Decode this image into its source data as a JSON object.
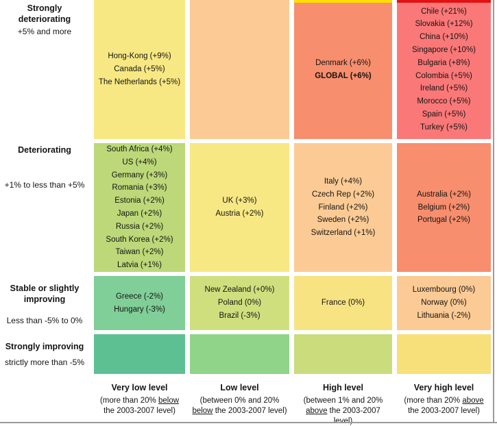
{
  "palette": {
    "grid_line_gray": "#9A9A9A"
  },
  "chart_data": {
    "type": "heatmap",
    "title": "",
    "rows": [
      {
        "label": "Strongly deteriorating",
        "range": "+5% and more"
      },
      {
        "label": "Deteriorating",
        "range": "+1% to less than +5%"
      },
      {
        "label": "Stable or slightly improving",
        "range": "Less than -5% to 0%"
      },
      {
        "label": "Strongly improving",
        "range": "strictly more than -5%"
      }
    ],
    "columns": [
      {
        "label": "Very low level",
        "range_pre": "(more than 20% ",
        "range_em": "below",
        "range_post": " the 2003-2007 level)"
      },
      {
        "label": "Low level",
        "range_pre": "(between 0% and 20% ",
        "range_em": "below",
        "range_post": " the 2003-2007 level)"
      },
      {
        "label": "High level",
        "range_pre": "(between 1% and 20% ",
        "range_em": "above",
        "range_post": " the 2003-2007 level)"
      },
      {
        "label": "Very high level",
        "range_pre": "(more than 20% ",
        "range_em": "above",
        "range_post": " the 2003-2007 level)"
      }
    ],
    "cells": [
      [
        {
          "color": "#F8E883",
          "entries": [
            "Hong-Kong (+9%)",
            "Canada (+5%)",
            "The Netherlands (+5%)"
          ]
        },
        {
          "color": "#FCCB95",
          "entries": []
        },
        {
          "color": "#F78E6D",
          "top_accent": "#FFDD00",
          "entries": [
            "Denmark (+6%)",
            {
              "text": "GLOBAL (+6%)",
              "bold": true
            }
          ]
        },
        {
          "color": "#FB7878",
          "top_accent": "#E21212",
          "entries": [
            "Chile (+21%)",
            "Slovakia (+12%)",
            "China (+10%)",
            "Singapore (+10%)",
            "Bulgaria (+8%)",
            "Colombia (+5%)",
            "Ireland (+5%)",
            "Morocco (+5%)",
            "Spain (+5%)",
            "Turkey (+5%)"
          ]
        }
      ],
      [
        {
          "color": "#BCD878",
          "entries": [
            "South Africa (+4%)",
            "US (+4%)",
            "Germany (+3%)",
            "Romania (+3%)",
            "Estonia (+2%)",
            "Japan (+2%)",
            "Russia (+2%)",
            "South Korea (+2%)",
            "Taiwan (+2%)",
            "Latvia (+1%)"
          ]
        },
        {
          "color": "#F8E883",
          "entries": [
            "UK (+3%)",
            "Austria (+2%)"
          ]
        },
        {
          "color": "#FCCB95",
          "entries": [
            "Italy (+4%)",
            "Czech Rep (+2%)",
            "Finland (+2%)",
            "Sweden (+2%)",
            "Switzerland (+1%)"
          ]
        },
        {
          "color": "#F78E6D",
          "entries": [
            "Australia (+2%)",
            "Belgium (+2%)",
            "Portugal (+2%)"
          ]
        }
      ],
      [
        {
          "color": "#80CE98",
          "entries": [
            "Greece (-2%)",
            "Hungary (-3%)"
          ]
        },
        {
          "color": "#D0DF7E",
          "entries": [
            "New Zealand (+0%)",
            "Poland (0%)",
            "Brazil (-3%)"
          ]
        },
        {
          "color": "#F8E383",
          "entries": [
            "France (0%)"
          ]
        },
        {
          "color": "#FBCA95",
          "entries": [
            "Luxembourg (0%)",
            "Norway (0%)",
            "Lithuania (-2%)"
          ]
        }
      ],
      [
        {
          "color": "#5CC093",
          "entries": []
        },
        {
          "color": "#90D489",
          "entries": []
        },
        {
          "color": "#CADC7B",
          "entries": []
        },
        {
          "color": "#F7DF79",
          "entries": []
        }
      ]
    ]
  }
}
